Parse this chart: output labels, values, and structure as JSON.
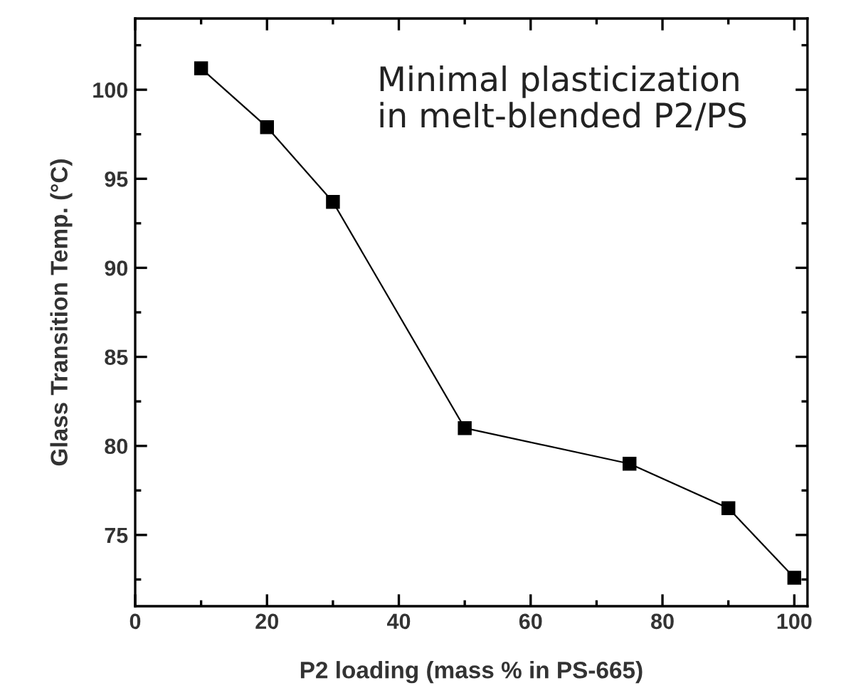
{
  "chart_data": {
    "type": "line",
    "xlabel": "P2 loading (mass % in PS-665)",
    "ylabel": "Glass Transition Temp. (°C)",
    "x": [
      10,
      20,
      30,
      50,
      75,
      90,
      100
    ],
    "series": [
      {
        "color": "#000000",
        "values": [
          101.2,
          97.9,
          93.7,
          81.0,
          79.0,
          76.5,
          72.6
        ]
      }
    ],
    "xlim": [
      0,
      102
    ],
    "ylim": [
      71,
      104
    ],
    "xticks": [
      0,
      20,
      40,
      60,
      80,
      100
    ],
    "yticks": [
      75,
      80,
      85,
      90,
      95,
      100
    ],
    "marker": "square",
    "line_style": "solid",
    "grid": false,
    "legend": false,
    "annotations": [
      "Minimal plasticization\nin melt-blended P2/PS"
    ]
  }
}
